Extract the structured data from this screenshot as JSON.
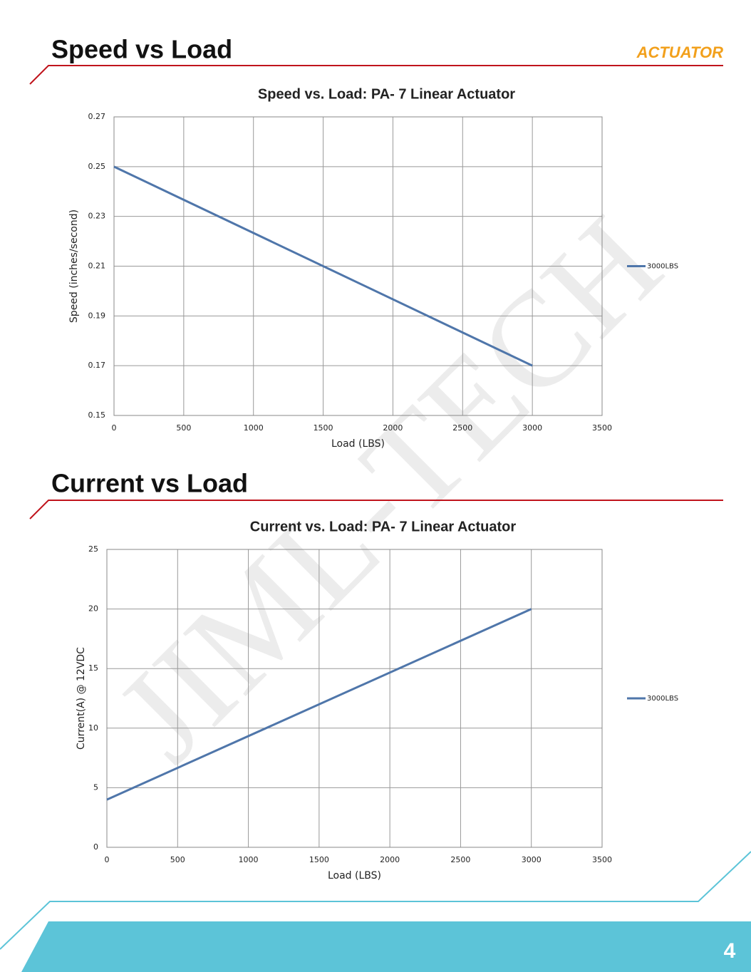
{
  "sections": [
    {
      "heading": "Speed vs Load"
    },
    {
      "heading": "Current vs Load"
    }
  ],
  "logo": "ACTUATOR",
  "watermark": "JIML-TECH",
  "page_number": "4",
  "chart_data": [
    {
      "type": "line",
      "title": "Speed vs. Load: PA- 7  Linear Actuator",
      "x_label": "Load (LBS)",
      "y_label": "Speed (inches/second)",
      "x": [
        0,
        3000
      ],
      "series": [
        {
          "name": "3000LBS",
          "color": "#4f76aa",
          "values": [
            0.25,
            0.17
          ]
        }
      ],
      "xlim": [
        0,
        3500
      ],
      "xticks": [
        0,
        500,
        1000,
        1500,
        2000,
        2500,
        3000,
        3500
      ],
      "ylim": [
        0.15,
        0.27
      ],
      "yticks": [
        0.15,
        0.17,
        0.19,
        0.21,
        0.23,
        0.25,
        0.27
      ],
      "grid": true,
      "legend": "right"
    },
    {
      "type": "line",
      "title": "Current vs. Load: PA- 7  Linear Actuator",
      "x_label": "Load (LBS)",
      "y_label": "Current(A) @ 12VDC",
      "x": [
        0,
        3000
      ],
      "series": [
        {
          "name": "3000LBS",
          "color": "#4f76aa",
          "values": [
            4,
            20
          ]
        }
      ],
      "xlim": [
        0,
        3500
      ],
      "xticks": [
        0,
        500,
        1000,
        1500,
        2000,
        2500,
        3000,
        3500
      ],
      "ylim": [
        0,
        25
      ],
      "yticks": [
        0,
        5,
        10,
        15,
        20,
        25
      ],
      "grid": true,
      "legend": "right"
    }
  ]
}
